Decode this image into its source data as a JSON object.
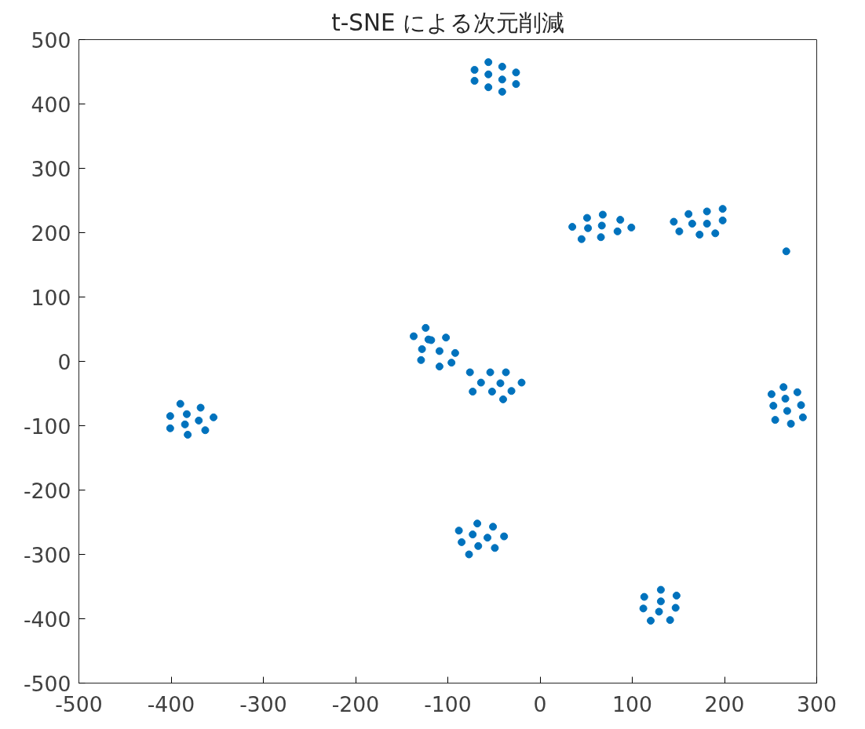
{
  "chart_data": {
    "type": "scatter",
    "title": "t-SNE による次元削減",
    "xlim": [
      -500,
      300
    ],
    "xticks": [
      -500,
      -400,
      -300,
      -200,
      -100,
      0,
      100,
      200,
      300
    ],
    "ylim": [
      -500,
      500
    ],
    "yticks": [
      -500,
      -400,
      -300,
      -200,
      -100,
      0,
      100,
      200,
      300,
      400,
      500
    ],
    "grid": false,
    "marker": "circle",
    "series": [
      {
        "color": "#0072bd",
        "x": [
          -71,
          -56,
          -41,
          -26,
          -71,
          -56,
          -41,
          -26,
          -56,
          -41,
          35,
          51,
          68,
          52,
          67,
          87,
          99,
          45,
          66,
          84,
          145,
          161,
          181,
          198,
          165,
          181,
          198,
          151,
          173,
          190,
          267,
          -124,
          -137,
          -121,
          -118,
          -102,
          -128,
          -109,
          -92,
          -129,
          -109,
          -96,
          -76,
          -54,
          -37,
          -64,
          -43,
          -20,
          -73,
          -52,
          -31,
          -40,
          -390,
          -368,
          -401,
          -383,
          -370,
          -354,
          -401,
          -385,
          -382,
          -363,
          -88,
          -68,
          -51,
          -73,
          -57,
          -39,
          -85,
          -67,
          -49,
          -77,
          113,
          131,
          148,
          131,
          112,
          129,
          147,
          120,
          141,
          264,
          251,
          279,
          266,
          253,
          283,
          268,
          285,
          255,
          272
        ],
        "values": [
          453,
          465,
          458,
          449,
          436,
          446,
          438,
          431,
          426,
          419,
          209,
          223,
          228,
          207,
          211,
          220,
          208,
          190,
          193,
          202,
          217,
          229,
          233,
          237,
          214,
          214,
          219,
          202,
          197,
          199,
          171,
          52,
          39,
          34,
          33,
          37,
          19,
          16,
          13,
          2,
          -8,
          -2,
          -17,
          -17,
          -17,
          -33,
          -34,
          -33,
          -47,
          -47,
          -46,
          -59,
          -66,
          -72,
          -85,
          -82,
          -92,
          -87,
          -104,
          -98,
          -114,
          -107,
          -263,
          -252,
          -257,
          -269,
          -274,
          -272,
          -281,
          -287,
          -290,
          -300,
          -366,
          -355,
          -364,
          -373,
          -384,
          -389,
          -383,
          -403,
          -402,
          -40,
          -51,
          -48,
          -58,
          -69,
          -68,
          -77,
          -87,
          -91,
          -97
        ]
      }
    ]
  }
}
